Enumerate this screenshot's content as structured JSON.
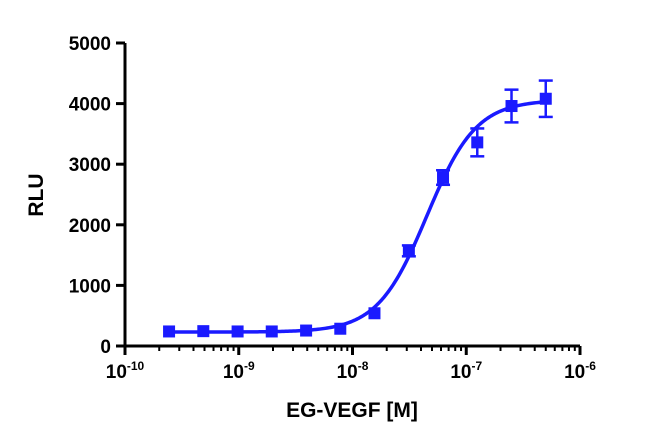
{
  "chart_data": {
    "type": "scatter",
    "title": "",
    "xlabel": "EG-VEGF [M]",
    "ylabel": "RLU",
    "xscale": "log",
    "xlim": [
      1e-10,
      1e-06
    ],
    "ylim": [
      0,
      5000
    ],
    "grid": false,
    "x_ticks": [
      {
        "value": 1e-10,
        "base": "10",
        "exp": "-10"
      },
      {
        "value": 1e-09,
        "base": "10",
        "exp": "-9"
      },
      {
        "value": 1e-08,
        "base": "10",
        "exp": "-8"
      },
      {
        "value": 1e-07,
        "base": "10",
        "exp": "-7"
      },
      {
        "value": 1e-06,
        "base": "10",
        "exp": "-6"
      }
    ],
    "y_ticks": [
      {
        "value": 0,
        "label": "0"
      },
      {
        "value": 1000,
        "label": "1000"
      },
      {
        "value": 2000,
        "label": "2000"
      },
      {
        "value": 3000,
        "label": "3000"
      },
      {
        "value": 4000,
        "label": "4000"
      },
      {
        "value": 5000,
        "label": "5000"
      }
    ],
    "series": [
      {
        "name": "EG-VEGF",
        "color": "#1a1aff",
        "marker": "square",
        "points": [
          {
            "x": 2.44e-10,
            "y": 240,
            "err": 25
          },
          {
            "x": 4.88e-10,
            "y": 245,
            "err": 25
          },
          {
            "x": 9.77e-10,
            "y": 240,
            "err": 25
          },
          {
            "x": 1.95e-09,
            "y": 240,
            "err": 25
          },
          {
            "x": 3.91e-09,
            "y": 255,
            "err": 25
          },
          {
            "x": 7.81e-09,
            "y": 285,
            "err": 25
          },
          {
            "x": 1.56e-08,
            "y": 540,
            "err": 40
          },
          {
            "x": 3.13e-08,
            "y": 1570,
            "err": 90
          },
          {
            "x": 6.25e-08,
            "y": 2780,
            "err": 120
          },
          {
            "x": 1.25e-07,
            "y": 3360,
            "err": 230
          },
          {
            "x": 2.5e-07,
            "y": 3960,
            "err": 270
          },
          {
            "x": 5e-07,
            "y": 4080,
            "err": 300
          }
        ],
        "fit": {
          "model": "4PL",
          "bottom": 230,
          "top": 4060,
          "ec50": 4.5e-08,
          "hill": 2.0
        }
      }
    ]
  }
}
